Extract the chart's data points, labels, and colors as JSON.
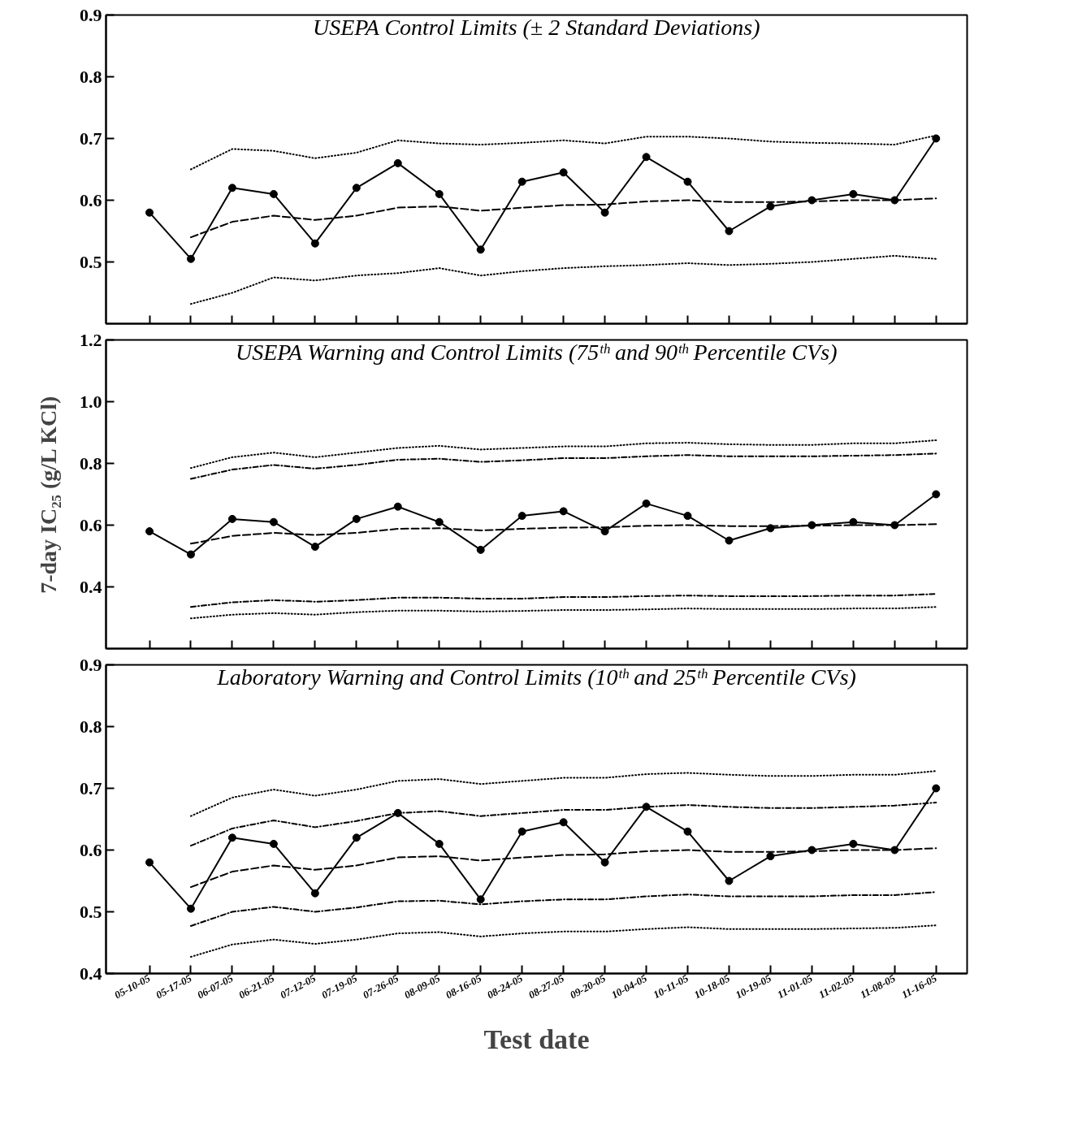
{
  "chart_data": [
    {
      "type": "line",
      "title": "USEPA Control Limits (± 2 Standard Deviations)",
      "tick_labels": "y",
      "categories": [
        null,
        null,
        null,
        null,
        null,
        null,
        null,
        null,
        null,
        null,
        null,
        null,
        null,
        null,
        null,
        null,
        null,
        null,
        null,
        null
      ],
      "ylim": [
        0.4,
        0.9
      ],
      "yticks": [
        0.5,
        0.6,
        0.7,
        0.8,
        0.9
      ],
      "series": [
        {
          "color": "#000000",
          "marker": "circle",
          "line_style": "solid",
          "values": [
            0.58,
            0.505,
            0.62,
            0.61,
            0.53,
            0.62,
            0.66,
            0.61,
            0.52,
            0.63,
            0.645,
            0.58,
            0.67,
            0.63,
            0.55,
            0.59,
            0.6,
            0.61,
            0.6,
            0.7
          ]
        },
        {
          "color": "#000000",
          "marker": "none",
          "line_style": "dashed",
          "values": [
            null,
            0.54,
            0.565,
            0.575,
            0.568,
            0.575,
            0.588,
            0.59,
            0.583,
            0.588,
            0.592,
            0.593,
            0.598,
            0.6,
            0.597,
            0.597,
            0.598,
            0.6,
            0.6,
            0.603
          ]
        },
        {
          "color": "#000000",
          "marker": "none",
          "line_style": "dotted",
          "values": [
            null,
            0.65,
            0.683,
            0.68,
            0.668,
            0.677,
            0.697,
            0.692,
            0.69,
            0.693,
            0.697,
            0.692,
            0.703,
            0.703,
            0.7,
            0.695,
            0.693,
            0.692,
            0.69,
            0.705
          ]
        },
        {
          "color": "#000000",
          "marker": "none",
          "line_style": "dotted",
          "values": [
            null,
            0.432,
            0.45,
            0.475,
            0.47,
            0.478,
            0.482,
            0.49,
            0.478,
            0.485,
            0.49,
            0.493,
            0.495,
            0.498,
            0.495,
            0.497,
            0.5,
            0.505,
            0.51,
            0.505
          ]
        }
      ]
    },
    {
      "type": "line",
      "title": "USEPA Warning and Control Limits (75ᵗʰ and 90ᵗʰ Percentile CVs)",
      "ylabel": "7-day IC₂₅ (g/L KCl)",
      "tick_labels": "y",
      "categories": [
        null,
        null,
        null,
        null,
        null,
        null,
        null,
        null,
        null,
        null,
        null,
        null,
        null,
        null,
        null,
        null,
        null,
        null,
        null,
        null
      ],
      "ylim": [
        0.2,
        1.2
      ],
      "yticks": [
        {
          "value": 0.4,
          "label": "0.4"
        },
        {
          "value": 0.6,
          "label": "0.6"
        },
        {
          "value": 0.8,
          "label": "0.8"
        },
        {
          "value": 1.0,
          "label": "1.0"
        },
        {
          "value": 1.2,
          "label": "1.2"
        }
      ],
      "series": [
        {
          "color": "#000000",
          "marker": "circle",
          "line_style": "solid",
          "values": [
            0.58,
            0.505,
            0.62,
            0.61,
            0.53,
            0.62,
            0.66,
            0.61,
            0.52,
            0.63,
            0.645,
            0.58,
            0.67,
            0.63,
            0.55,
            0.59,
            0.6,
            0.61,
            0.6,
            0.7
          ]
        },
        {
          "color": "#000000",
          "marker": "none",
          "line_style": "dashed",
          "values": [
            null,
            0.54,
            0.565,
            0.575,
            0.568,
            0.575,
            0.588,
            0.59,
            0.583,
            0.588,
            0.592,
            0.593,
            0.598,
            0.6,
            0.597,
            0.597,
            0.598,
            0.6,
            0.6,
            0.603
          ]
        },
        {
          "color": "#000000",
          "marker": "none",
          "line_style": "dotted",
          "values": [
            null,
            0.785,
            0.82,
            0.835,
            0.82,
            0.835,
            0.85,
            0.857,
            0.845,
            0.85,
            0.855,
            0.855,
            0.865,
            0.867,
            0.862,
            0.86,
            0.86,
            0.865,
            0.865,
            0.875
          ]
        },
        {
          "color": "#000000",
          "marker": "none",
          "line_style": "dashdot",
          "values": [
            null,
            0.75,
            0.78,
            0.795,
            0.783,
            0.795,
            0.812,
            0.815,
            0.805,
            0.81,
            0.817,
            0.817,
            0.823,
            0.827,
            0.823,
            0.823,
            0.823,
            0.825,
            0.827,
            0.832
          ]
        },
        {
          "color": "#000000",
          "marker": "none",
          "line_style": "dashdot",
          "values": [
            null,
            0.335,
            0.35,
            0.357,
            0.352,
            0.357,
            0.365,
            0.365,
            0.362,
            0.362,
            0.367,
            0.367,
            0.37,
            0.372,
            0.37,
            0.37,
            0.37,
            0.372,
            0.372,
            0.377
          ]
        },
        {
          "color": "#000000",
          "marker": "none",
          "line_style": "dotted",
          "values": [
            null,
            0.298,
            0.31,
            0.315,
            0.31,
            0.318,
            0.323,
            0.323,
            0.32,
            0.322,
            0.325,
            0.325,
            0.327,
            0.33,
            0.328,
            0.328,
            0.328,
            0.33,
            0.33,
            0.335
          ]
        }
      ]
    },
    {
      "type": "line",
      "title": "Laboratory Warning and Control Limits (10ᵗʰ and 25ᵗʰ Percentile CVs)",
      "xlabel": "Test date",
      "categories": [
        "05-10-05",
        "05-17-05",
        "06-07-05",
        "06-21-05",
        "07-12-05",
        "07-19-05",
        "07-26-05",
        "08-09-05",
        "08-16-05",
        "08-24-05",
        "08-27-05",
        "09-20-05",
        "10-04-05",
        "10-11-05",
        "10-18-05",
        "10-19-05",
        "11-01-05",
        "11-02-05",
        "11-08-05",
        "11-16-05"
      ],
      "ylim": [
        0.4,
        0.9
      ],
      "yticks": [
        0.4,
        0.5,
        0.6,
        0.7,
        0.8,
        0.9
      ],
      "series": [
        {
          "color": "#000000",
          "marker": "circle",
          "line_style": "solid",
          "values": [
            0.58,
            0.505,
            0.62,
            0.61,
            0.53,
            0.62,
            0.66,
            0.61,
            0.52,
            0.63,
            0.645,
            0.58,
            0.67,
            0.63,
            0.55,
            0.59,
            0.6,
            0.61,
            0.6,
            0.7
          ]
        },
        {
          "color": "#000000",
          "marker": "none",
          "line_style": "dashed",
          "values": [
            null,
            0.54,
            0.565,
            0.575,
            0.568,
            0.575,
            0.588,
            0.59,
            0.583,
            0.588,
            0.592,
            0.593,
            0.598,
            0.6,
            0.597,
            0.597,
            0.598,
            0.6,
            0.6,
            0.603
          ]
        },
        {
          "color": "#000000",
          "marker": "none",
          "line_style": "dotted",
          "values": [
            null,
            0.655,
            0.685,
            0.698,
            0.688,
            0.698,
            0.712,
            0.715,
            0.707,
            0.712,
            0.717,
            0.717,
            0.723,
            0.725,
            0.722,
            0.72,
            0.72,
            0.722,
            0.722,
            0.728
          ]
        },
        {
          "color": "#000000",
          "marker": "none",
          "line_style": "dashdot",
          "values": [
            null,
            0.607,
            0.635,
            0.648,
            0.637,
            0.647,
            0.66,
            0.663,
            0.655,
            0.66,
            0.665,
            0.665,
            0.67,
            0.673,
            0.67,
            0.668,
            0.668,
            0.67,
            0.672,
            0.677
          ]
        },
        {
          "color": "#000000",
          "marker": "none",
          "line_style": "dashdot",
          "values": [
            null,
            0.477,
            0.5,
            0.508,
            0.5,
            0.507,
            0.517,
            0.518,
            0.512,
            0.517,
            0.52,
            0.52,
            0.525,
            0.528,
            0.525,
            0.525,
            0.525,
            0.527,
            0.527,
            0.532
          ]
        },
        {
          "color": "#000000",
          "marker": "none",
          "line_style": "dotted",
          "values": [
            null,
            0.427,
            0.447,
            0.455,
            0.448,
            0.455,
            0.465,
            0.467,
            0.46,
            0.465,
            0.468,
            0.468,
            0.472,
            0.475,
            0.472,
            0.472,
            0.472,
            0.473,
            0.474,
            0.478
          ]
        }
      ]
    }
  ]
}
